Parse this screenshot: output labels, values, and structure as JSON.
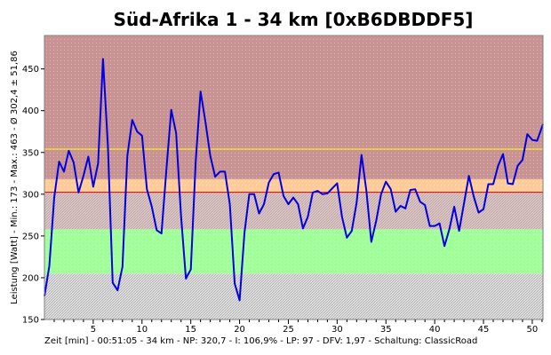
{
  "chart_data": {
    "type": "line",
    "title": "Süd-Afrika 1 - 34 km [0xB6DBDDF5]",
    "xlabel": "Zeit [min] - 00:51:05 - 34 km - NP: 320,7 - I: 106,9% - LP: 97 - DFV: 1,97 - Schaltung: ClassicRoad",
    "ylabel": "Leistung [Watt] - Min.: 173 - Max.: 463 - Ø 302,4 ± 51,86",
    "xlim": [
      0,
      51.1
    ],
    "ylim": [
      150,
      490
    ],
    "x_ticks": [
      5,
      10,
      15,
      20,
      25,
      30,
      35,
      40,
      45,
      50
    ],
    "y_ticks": [
      150,
      200,
      250,
      300,
      350,
      400,
      450
    ],
    "grid": false,
    "bands": [
      {
        "from": 150,
        "to": 205,
        "color": "#e0e0e0"
      },
      {
        "from": 205,
        "to": 258,
        "color": "#a0ff98"
      },
      {
        "from": 258,
        "to": 302,
        "color": "#e3c4c4"
      },
      {
        "from": 302,
        "to": 318,
        "color": "#ffcc99"
      },
      {
        "from": 318,
        "to": 490,
        "color": "#c99393"
      }
    ],
    "reference_lines": [
      {
        "y": 302.4,
        "color": "#cc0000"
      },
      {
        "y": 354,
        "color": "#ffff00"
      }
    ],
    "series": [
      {
        "color": "#0000e0",
        "x": [
          0,
          0.5,
          1,
          1.5,
          2,
          2.5,
          3,
          3.5,
          4,
          4.5,
          5,
          5.5,
          6,
          6.5,
          7,
          7.5,
          8,
          8.5,
          9,
          9.5,
          10,
          10.5,
          11,
          11.5,
          12,
          12.5,
          13,
          13.5,
          14,
          14.5,
          15,
          15.5,
          16,
          16.5,
          17,
          17.5,
          18,
          18.5,
          19,
          19.5,
          20,
          20.5,
          21,
          21.5,
          22,
          22.5,
          23,
          23.5,
          24,
          24.5,
          25,
          25.5,
          26,
          26.5,
          27,
          27.5,
          28,
          28.5,
          29,
          29.5,
          30,
          30.5,
          31,
          31.5,
          32,
          32.5,
          33,
          33.5,
          34,
          34.5,
          35,
          35.5,
          36,
          36.5,
          37,
          37.5,
          38,
          38.5,
          39,
          39.5,
          40,
          40.5,
          41,
          41.5,
          42,
          42.5,
          43,
          43.5,
          44,
          44.5,
          45,
          45.5,
          46,
          46.5,
          47,
          47.5,
          48,
          48.5,
          49,
          49.5,
          50,
          50.5,
          51.1
        ],
        "y": [
          178,
          214,
          296,
          339,
          327,
          352,
          338,
          302,
          322,
          345,
          309,
          337,
          462,
          358,
          194,
          185,
          213,
          346,
          389,
          375,
          370,
          306,
          285,
          257,
          253,
          329,
          401,
          373,
          274,
          199,
          210,
          339,
          423,
          387,
          346,
          321,
          327,
          327,
          288,
          193,
          173,
          254,
          300,
          300,
          277,
          288,
          314,
          324,
          326,
          298,
          288,
          296,
          288,
          259,
          273,
          302,
          304,
          300,
          301,
          307,
          313,
          273,
          248,
          256,
          290,
          347,
          304,
          243,
          268,
          300,
          315,
          306,
          279,
          286,
          283,
          305,
          306,
          291,
          287,
          262,
          262,
          265,
          238,
          258,
          285,
          256,
          289,
          322,
          297,
          278,
          282,
          312,
          312,
          334,
          348,
          313,
          312,
          334,
          341,
          372,
          365,
          364,
          384
        ]
      }
    ]
  }
}
